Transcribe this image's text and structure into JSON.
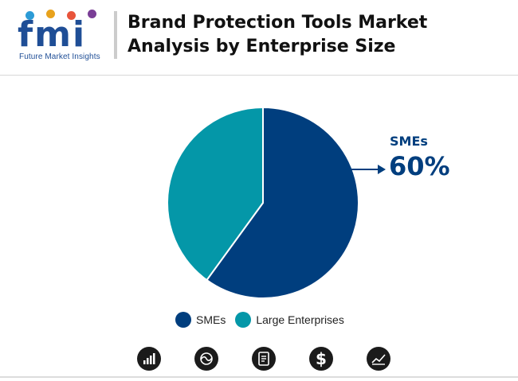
{
  "brand": {
    "logo_text": "fmi",
    "tagline": "Future Market Insights"
  },
  "header": {
    "title_line1": "Brand Protection Tools Market",
    "title_line2": "Analysis by Enterprise Size"
  },
  "colors": {
    "smes": "#003e7e",
    "large_enterprises": "#0497a8",
    "logo_blue": "#1f4e96",
    "logo_dots": [
      "#2c9bd6",
      "#e8a21c",
      "#e8543b",
      "#7a3e96"
    ]
  },
  "chart_data": {
    "type": "pie",
    "title": "Brand Protection Tools Market Analysis by Enterprise Size",
    "categories": [
      "SMEs",
      "Large Enterprises"
    ],
    "values": [
      60,
      40
    ],
    "unit": "%",
    "legend": "bottom"
  },
  "callout": {
    "category": "SMEs",
    "value": "60%"
  },
  "legend": {
    "items": [
      {
        "label": "SMEs"
      },
      {
        "label": "Large Enterprises"
      }
    ]
  },
  "bottom_icons": [
    {
      "name": "bar-chart-icon"
    },
    {
      "name": "chart-swirl-icon"
    },
    {
      "name": "document-icon"
    },
    {
      "name": "dollar-icon"
    },
    {
      "name": "trend-line-icon"
    }
  ]
}
